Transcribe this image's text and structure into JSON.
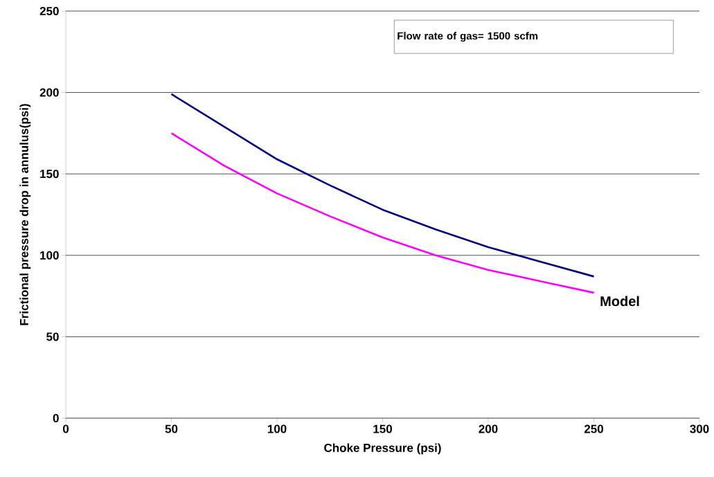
{
  "chart_data": {
    "type": "line",
    "xlabel": "Choke Pressure (psi)",
    "ylabel": "Frictional pressure drop in annulus(psi)",
    "annotations": [
      "Flow rate of gas= 1500 scfm"
    ],
    "x": [
      50,
      75,
      100,
      125,
      150,
      175,
      200,
      225,
      250
    ],
    "series": [
      {
        "color": "#000080",
        "values": [
          199,
          179,
          159,
          143,
          128,
          116,
          105,
          96,
          87
        ]
      },
      {
        "name": "Model",
        "color": "#ff00ff",
        "values": [
          175,
          155,
          138,
          124,
          111,
          100,
          91,
          84,
          77
        ]
      }
    ],
    "xlim": [
      0,
      300
    ],
    "xticks": [
      0,
      50,
      100,
      150,
      200,
      250,
      300
    ],
    "ylim": [
      0,
      250
    ],
    "yticks": [
      0,
      50,
      100,
      150,
      200,
      250
    ],
    "grid": "y",
    "legend": false,
    "marker": "none",
    "line_style": "solid"
  }
}
